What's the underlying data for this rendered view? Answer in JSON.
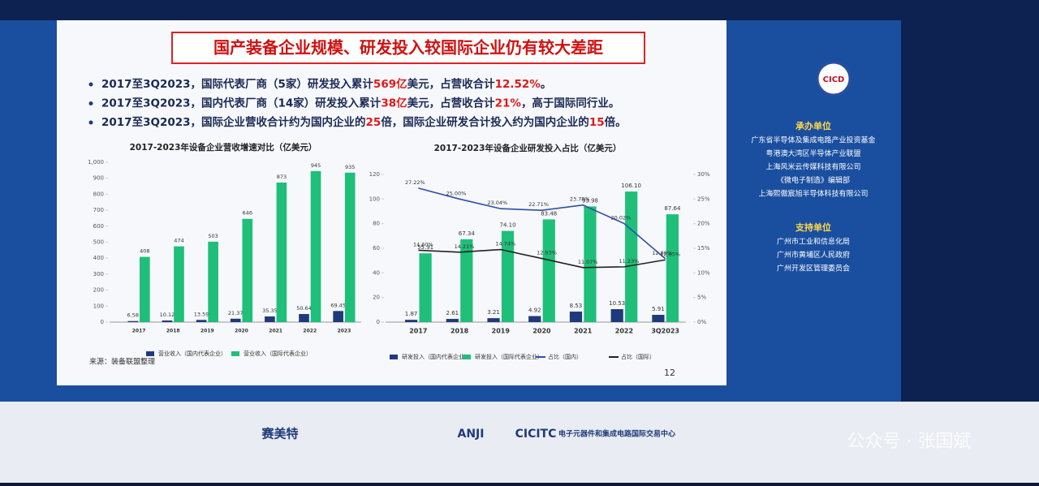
{
  "slide": {
    "title": "国产装备企业规模、研发投入较国际企业仍有较大差距",
    "bullets": [
      [
        {
          "text": "2017至3Q2023，国际代表厂商（5家）研发投入累计",
          "hl": false
        },
        {
          "text": "569亿",
          "hl": true
        },
        {
          "text": "美元，占营收合计",
          "hl": false
        },
        {
          "text": "12.52%",
          "hl": true
        },
        {
          "text": "。",
          "hl": false
        }
      ],
      [
        {
          "text": "2017至3Q2023，国内代表厂商（14家）研发投入累计",
          "hl": false
        },
        {
          "text": "38亿",
          "hl": true
        },
        {
          "text": "美元，占营收合计",
          "hl": false
        },
        {
          "text": "21%",
          "hl": true
        },
        {
          "text": "，高于国际同行业。",
          "hl": false
        }
      ],
      [
        {
          "text": "2017至3Q2023，国际企业营收合计约为国内企业的",
          "hl": false
        },
        {
          "text": "25",
          "hl": true
        },
        {
          "text": "倍，国际企业研发合计投入约为国内企业的",
          "hl": false
        },
        {
          "text": "15",
          "hl": true
        },
        {
          "text": "倍。",
          "hl": false
        }
      ]
    ],
    "source": "来源：装备联盟整理",
    "page": "12",
    "organizer_title": "承办单位",
    "organizers": [
      "广东省半导体及集成电路产业投资基金",
      "粤港澳大湾区半导体产业联盟",
      "上海风米云传媒科技有限公司",
      "《微电子制造》编辑部",
      "上海熙傲宸旭半导体科技有限公司"
    ],
    "supporter_title": "支持单位",
    "supporters": [
      "广州市工业和信息化局",
      "广州市黄埔区人民政府",
      "广州开发区管理委员会"
    ],
    "logo": "CICD",
    "sponsors": [
      "赛美特",
      "ANJI",
      "CICITC",
      "电子元器件和集成电路国际交易中心"
    ],
    "watermark": "公众号 · 张国斌"
  },
  "chart_data": [
    {
      "type": "bar",
      "title": "2017-2023年设备企业营收增速对比（亿美元）",
      "categories": [
        "2017",
        "2018",
        "2019",
        "2020",
        "2021",
        "2022",
        "2023"
      ],
      "ylim": [
        0,
        1000
      ],
      "yticks": [
        0,
        100,
        200,
        300,
        400,
        500,
        600,
        700,
        800,
        900,
        {
          "value": 1000,
          "label": "1,000"
        }
      ],
      "series": [
        {
          "name": "营业收入（国内代表企业）",
          "color": "#1f3a7a",
          "values": [
            6.58,
            10.12,
            13.59,
            21.37,
            35.35,
            50.64,
            69.45
          ]
        },
        {
          "name": "营业收入（国际代表企业）",
          "color": "#1fbf7a",
          "values": [
            408,
            474,
            503,
            646,
            873,
            945,
            935
          ]
        }
      ]
    },
    {
      "type": "bar",
      "title": "2017-2023年设备企业研发投入占比（亿美元）",
      "categories": [
        "2017",
        "2018",
        "2019",
        "2020",
        "2021",
        "2022",
        "3Q2023"
      ],
      "ylim": [
        0,
        120
      ],
      "yticks": [
        0,
        20,
        40,
        60,
        80,
        100,
        120
      ],
      "y2lim": [
        0,
        30
      ],
      "y2ticks": [
        {
          "value": 0,
          "label": "0%"
        },
        {
          "value": 5,
          "label": "5%"
        },
        {
          "value": 10,
          "label": "10%"
        },
        {
          "value": 15,
          "label": "15%"
        },
        {
          "value": 20,
          "label": "20%"
        },
        {
          "value": 25,
          "label": "25%"
        },
        {
          "value": 30,
          "label": "30%"
        }
      ],
      "series": [
        {
          "name": "研发投入（国内代表企业）",
          "color": "#1f3a7a",
          "values": [
            1.87,
            2.61,
            3.21,
            4.92,
            8.53,
            10.53,
            5.91
          ]
        },
        {
          "name": "研发投入（国际代表企业）",
          "color": "#1fbf7a",
          "values": [
            55.91,
            67.34,
            74.1,
            83.48,
            93.98,
            106.1,
            87.64
          ],
          "value_labels": [
            "55.91",
            "67.34",
            "74.10",
            "83.48",
            "93.98",
            "106.10",
            "87.64"
          ]
        },
        {
          "name": "占比（国内）",
          "color": "#2e4fa8",
          "type": "line",
          "axis": "y2",
          "values": [
            27.22,
            25,
            23.04,
            22.71,
            23.78,
            20.02,
            12.88
          ],
          "value_labels": [
            "27.22%",
            "25.00%",
            "23.04%",
            "22.71%",
            "23.78%",
            "20.02%",
            "12.88%"
          ]
        },
        {
          "name": "占比（国际）",
          "color": "#222222",
          "type": "line",
          "axis": "y2",
          "values": [
            14.6,
            14.21,
            14.74,
            12.93,
            11.07,
            11.23,
            12.65
          ],
          "value_labels": [
            "14.60%",
            "14.21%",
            "14.74%",
            "12.93%",
            "11.07%",
            "11.23%",
            "12.65%"
          ]
        }
      ]
    }
  ]
}
